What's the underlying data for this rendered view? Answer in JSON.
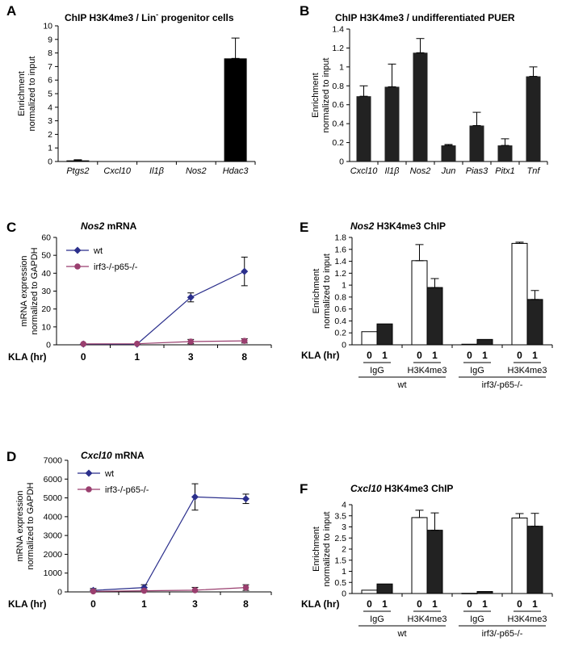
{
  "panels": [
    {
      "id": "A",
      "title": "ChIP H3K4me3 / Lin",
      "title_sup": "-",
      "title_tail": " progenitor cells",
      "chart_data": {
        "type": "bar",
        "categories": [
          "Ptgs2",
          "Cxcl10",
          "Il1β",
          "Nos2",
          "Hdac3"
        ],
        "values": [
          0.08,
          0.02,
          0.01,
          0.03,
          7.6
        ],
        "errors": [
          0.05,
          0,
          0,
          0,
          1.5
        ],
        "ylabel": "Enrichment normalized to input",
        "ylim": [
          0,
          10
        ],
        "yticks": [
          "0",
          "1",
          "2",
          "3",
          "4",
          "5",
          "6",
          "7",
          "8",
          "9",
          "10"
        ],
        "bar_color": "#000000"
      }
    },
    {
      "id": "B",
      "title": "ChIP H3K4me3 / undifferentiated PUER",
      "chart_data": {
        "type": "bar",
        "categories": [
          "Cxcl10",
          "Il1β",
          "Nos2",
          "Jun",
          "Pias3",
          "Pitx1",
          "Tnf"
        ],
        "values": [
          0.69,
          0.79,
          1.15,
          0.17,
          0.38,
          0.17,
          0.9
        ],
        "errors": [
          0.11,
          0.24,
          0.15,
          0.01,
          0.14,
          0.07,
          0.1
        ],
        "ylabel": "Enrichment normalized to input",
        "ylim": [
          0,
          1.4
        ],
        "yticks": [
          "0",
          "0.2",
          "0.4",
          "0.6",
          "0.8",
          "1",
          "1.2",
          "1.4"
        ],
        "bar_color": "#222222"
      }
    },
    {
      "id": "C",
      "title_italic": "Nos2",
      "title": " mRNA",
      "chart_data": {
        "type": "line",
        "x": [
          "0",
          "1",
          "3",
          "8"
        ],
        "x_label": "KLA (hr)",
        "ylabel": "mRNA expression normalized to GAPDH",
        "ylim": [
          0,
          60
        ],
        "yticks": [
          "0",
          "10",
          "20",
          "30",
          "40",
          "50",
          "60"
        ],
        "legend_position": "top-left",
        "series": [
          {
            "name": "wt",
            "values": [
              0.4,
              0.4,
              26.5,
              41
            ],
            "errors": [
              0,
              0,
              2.5,
              8
            ],
            "color": "#2b2f8c"
          },
          {
            "name": "irf3-/-p65-/-",
            "values": [
              0.5,
              0.6,
              1.8,
              2.2
            ],
            "errors": [
              0,
              0,
              1.2,
              1.2
            ],
            "color": "#9a3f6f"
          }
        ]
      }
    },
    {
      "id": "D",
      "title_italic": "Cxcl10",
      "title": " mRNA",
      "chart_data": {
        "type": "line",
        "x": [
          "0",
          "1",
          "3",
          "8"
        ],
        "x_label": "KLA (hr)",
        "ylabel": "mRNA expression normalized to GAPDH",
        "ylim": [
          0,
          7000
        ],
        "yticks": [
          "0",
          "1000",
          "2000",
          "3000",
          "4000",
          "5000",
          "6000",
          "7000"
        ],
        "legend_position": "top-left",
        "series": [
          {
            "name": "wt",
            "values": [
              80,
              230,
              5050,
              4950
            ],
            "errors": [
              100,
              150,
              700,
              250
            ],
            "color": "#2b2f8c"
          },
          {
            "name": "irf3-/-p65-/-",
            "values": [
              30,
              60,
              90,
              230
            ],
            "errors": [
              60,
              60,
              150,
              150
            ],
            "color": "#9a3f6f"
          }
        ]
      }
    },
    {
      "id": "E",
      "title_italic": "Nos2",
      "title": " H3K4me3 ChIP",
      "chart_data": {
        "type": "bar",
        "ylabel": "Enrichment normalized to input",
        "ylim": [
          0,
          1.8
        ],
        "yticks": [
          "0",
          "0.2",
          "0.4",
          "0.6",
          "0.8",
          "1",
          "1.2",
          "1.4",
          "1.6",
          "1.8"
        ],
        "x_label": "KLA (hr)",
        "time_labels": [
          "0",
          "1"
        ],
        "groups": [
          {
            "antibody": "IgG",
            "genotype": "wt",
            "values": [
              0.22,
              0.35
            ],
            "errors": [
              0,
              0
            ]
          },
          {
            "antibody": "H3K4me3",
            "genotype": "wt",
            "values": [
              1.41,
              0.96
            ],
            "errors": [
              0.27,
              0.15
            ]
          },
          {
            "antibody": "IgG",
            "genotype": "irf3/-p65-/-",
            "values": [
              0.01,
              0.09
            ],
            "errors": [
              0,
              0
            ]
          },
          {
            "antibody": "H3K4me3",
            "genotype": "irf3/-p65-/-",
            "values": [
              1.7,
              0.76
            ],
            "errors": [
              0.02,
              0.15
            ]
          }
        ],
        "genotypes": [
          "wt",
          "irf3/-p65-/-"
        ],
        "colors": [
          "#ffffff",
          "#222222"
        ]
      }
    },
    {
      "id": "F",
      "title_italic": "Cxcl10",
      "title": " H3K4me3 ChIP",
      "chart_data": {
        "type": "bar",
        "ylabel": "Enrichment normalized to input",
        "ylim": [
          0,
          4
        ],
        "yticks": [
          "0",
          "0.5",
          "1",
          "1.5",
          "2",
          "2.5",
          "3",
          "3.5",
          "4"
        ],
        "x_label": "KLA (hr)",
        "time_labels": [
          "0",
          "1"
        ],
        "groups": [
          {
            "antibody": "IgG",
            "genotype": "wt",
            "values": [
              0.15,
              0.43
            ],
            "errors": [
              0,
              0
            ]
          },
          {
            "antibody": "H3K4me3",
            "genotype": "wt",
            "values": [
              3.42,
              2.85
            ],
            "errors": [
              0.33,
              0.78
            ]
          },
          {
            "antibody": "IgG",
            "genotype": "irf3/-p65-/-",
            "values": [
              0.01,
              0.09
            ],
            "errors": [
              0,
              0
            ]
          },
          {
            "antibody": "H3K4me3",
            "genotype": "irf3/-p65-/-",
            "values": [
              3.4,
              3.03
            ],
            "errors": [
              0.2,
              0.58
            ]
          }
        ],
        "genotypes": [
          "wt",
          "irf3/-p65-/-"
        ],
        "colors": [
          "#ffffff",
          "#222222"
        ]
      }
    }
  ]
}
